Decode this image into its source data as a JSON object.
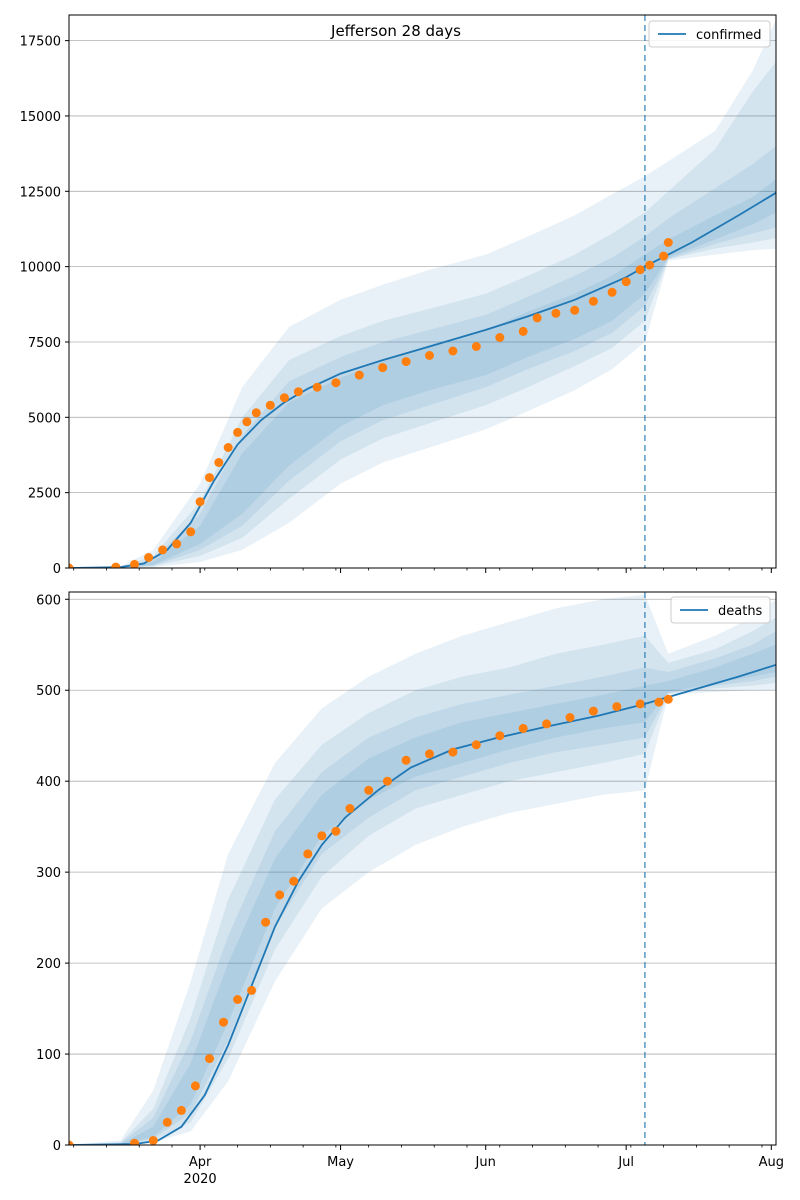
{
  "chart_data": [
    {
      "type": "line",
      "title": "Jefferson 28 days",
      "xlabel": "",
      "ylabel": "",
      "x_ticks": [
        "Apr\n2020",
        "May",
        "Jun",
        "Jul",
        "Aug"
      ],
      "y_ticks": [
        0,
        2500,
        5000,
        7500,
        10000,
        12500,
        15000,
        17500
      ],
      "ylim": [
        0,
        18350
      ],
      "xlim": [
        "2020-03-04",
        "2020-08-02"
      ],
      "forecast_start": "2020-07-05",
      "grid": "horizontal",
      "legend": {
        "position": "top-right",
        "entries": [
          "confirmed"
        ]
      },
      "colors": {
        "model": "#1f77b4",
        "observed": "#ff7f0e",
        "band": "#1f77b4"
      },
      "series": [
        {
          "name": "confirmed",
          "kind": "model-line",
          "x": [
            "2020-03-04",
            "2020-03-15",
            "2020-03-20",
            "2020-03-25",
            "2020-03-30",
            "2020-04-04",
            "2020-04-09",
            "2020-04-14",
            "2020-04-19",
            "2020-04-24",
            "2020-05-01",
            "2020-05-10",
            "2020-05-20",
            "2020-06-01",
            "2020-06-10",
            "2020-06-20",
            "2020-07-01",
            "2020-07-05",
            "2020-07-15",
            "2020-07-25",
            "2020-08-02"
          ],
          "values": [
            0,
            30,
            150,
            600,
            1500,
            2900,
            4100,
            4900,
            5500,
            5950,
            6450,
            6900,
            7350,
            7900,
            8350,
            8900,
            9650,
            10000,
            10800,
            11700,
            12450
          ]
        },
        {
          "name": "",
          "kind": "observed-points",
          "x": [
            "2020-03-04",
            "2020-03-14",
            "2020-03-18",
            "2020-03-21",
            "2020-03-24",
            "2020-03-27",
            "2020-03-30",
            "2020-04-01",
            "2020-04-03",
            "2020-04-05",
            "2020-04-07",
            "2020-04-09",
            "2020-04-11",
            "2020-04-13",
            "2020-04-16",
            "2020-04-19",
            "2020-04-22",
            "2020-04-26",
            "2020-04-30",
            "2020-05-05",
            "2020-05-10",
            "2020-05-15",
            "2020-05-20",
            "2020-05-25",
            "2020-05-30",
            "2020-06-04",
            "2020-06-09",
            "2020-06-12",
            "2020-06-16",
            "2020-06-20",
            "2020-06-24",
            "2020-06-28",
            "2020-07-01",
            "2020-07-04",
            "2020-07-06",
            "2020-07-09",
            "2020-07-10"
          ],
          "values": [
            0,
            30,
            120,
            350,
            600,
            800,
            1200,
            2200,
            3000,
            3500,
            4000,
            4500,
            4850,
            5150,
            5400,
            5650,
            5850,
            6000,
            6150,
            6400,
            6650,
            6850,
            7050,
            7200,
            7350,
            7650,
            7850,
            8300,
            8450,
            8550,
            8850,
            9150,
            9500,
            9900,
            10050,
            10350,
            10800
          ]
        }
      ],
      "bands": [
        {
          "upper": [
            0,
            60,
            600,
            2800,
            6000,
            8000,
            8900,
            9400,
            9900,
            10400,
            11000,
            11700,
            12400,
            13000,
            13500,
            14500,
            16500,
            18200
          ],
          "lower": [
            0,
            0,
            30,
            200,
            600,
            1500,
            2800,
            3500,
            4000,
            4600,
            5200,
            5900,
            6600,
            7500,
            10200,
            10400,
            10550,
            10600
          ]
        },
        {
          "upper": [
            0,
            40,
            400,
            2200,
            5000,
            6900,
            7700,
            8200,
            8600,
            9100,
            9700,
            10400,
            11100,
            11800,
            12500,
            13900,
            15800,
            16800
          ],
          "lower": [
            0,
            0,
            60,
            400,
            1000,
            2300,
            3600,
            4300,
            4800,
            5400,
            6000,
            6700,
            7300,
            8200,
            10250,
            10600,
            10800,
            10950
          ]
        },
        {
          "upper": [
            0,
            30,
            300,
            1800,
            4400,
            6200,
            7000,
            7500,
            7900,
            8400,
            9000,
            9700,
            10300,
            11000,
            11600,
            12600,
            13400,
            14000
          ],
          "lower": [
            0,
            0,
            80,
            600,
            1400,
            2900,
            4200,
            4900,
            5400,
            6000,
            6600,
            7200,
            7800,
            8700,
            10250,
            10750,
            11100,
            11300
          ]
        },
        {
          "upper": [
            0,
            20,
            200,
            1400,
            3800,
            5500,
            6300,
            6900,
            7400,
            7900,
            8500,
            9100,
            9700,
            10400,
            10900,
            11700,
            12300,
            12900
          ],
          "lower": [
            0,
            0,
            100,
            800,
            1800,
            3400,
            4700,
            5400,
            5900,
            6400,
            7000,
            7600,
            8200,
            9100,
            10300,
            10900,
            11400,
            11800
          ]
        }
      ],
      "band_x": [
        "2020-03-04",
        "2020-03-15",
        "2020-03-22",
        "2020-04-01",
        "2020-04-10",
        "2020-04-20",
        "2020-05-01",
        "2020-05-10",
        "2020-05-20",
        "2020-06-01",
        "2020-06-10",
        "2020-06-20",
        "2020-06-28",
        "2020-07-05",
        "2020-07-10",
        "2020-07-20",
        "2020-07-28",
        "2020-08-02"
      ]
    },
    {
      "type": "line",
      "title": "",
      "xlabel": "",
      "ylabel": "",
      "x_ticks": [
        "Apr\n2020",
        "May",
        "Jun",
        "Jul",
        "Aug"
      ],
      "y_ticks": [
        0,
        100,
        200,
        300,
        400,
        500,
        600
      ],
      "ylim": [
        0,
        608
      ],
      "xlim": [
        "2020-03-04",
        "2020-08-02"
      ],
      "forecast_start": "2020-07-05",
      "grid": "horizontal",
      "legend": {
        "position": "top-right",
        "entries": [
          "deaths"
        ]
      },
      "colors": {
        "model": "#1f77b4",
        "observed": "#ff7f0e",
        "band": "#1f77b4"
      },
      "series": [
        {
          "name": "deaths",
          "kind": "model-line",
          "x": [
            "2020-03-04",
            "2020-03-18",
            "2020-03-23",
            "2020-03-28",
            "2020-04-02",
            "2020-04-07",
            "2020-04-12",
            "2020-04-17",
            "2020-04-22",
            "2020-04-27",
            "2020-05-02",
            "2020-05-09",
            "2020-05-16",
            "2020-05-25",
            "2020-06-03",
            "2020-06-14",
            "2020-06-25",
            "2020-07-05",
            "2020-07-15",
            "2020-07-25",
            "2020-08-02"
          ],
          "values": [
            0,
            1,
            5,
            20,
            55,
            110,
            175,
            240,
            290,
            330,
            360,
            390,
            415,
            435,
            447,
            460,
            472,
            485,
            500,
            515,
            528
          ]
        },
        {
          "name": "",
          "kind": "observed-points",
          "x": [
            "2020-03-04",
            "2020-03-18",
            "2020-03-22",
            "2020-03-25",
            "2020-03-28",
            "2020-03-31",
            "2020-04-03",
            "2020-04-06",
            "2020-04-09",
            "2020-04-12",
            "2020-04-15",
            "2020-04-18",
            "2020-04-21",
            "2020-04-24",
            "2020-04-27",
            "2020-04-30",
            "2020-05-03",
            "2020-05-07",
            "2020-05-11",
            "2020-05-15",
            "2020-05-20",
            "2020-05-25",
            "2020-05-30",
            "2020-06-04",
            "2020-06-09",
            "2020-06-14",
            "2020-06-19",
            "2020-06-24",
            "2020-06-29",
            "2020-07-04",
            "2020-07-08",
            "2020-07-10"
          ],
          "values": [
            0,
            2,
            5,
            25,
            38,
            65,
            95,
            135,
            160,
            170,
            245,
            275,
            290,
            320,
            340,
            345,
            370,
            390,
            400,
            423,
            430,
            432,
            440,
            450,
            458,
            463,
            470,
            477,
            482,
            485,
            487,
            490
          ]
        }
      ],
      "bands": [
        {
          "upper": [
            0,
            5,
            60,
            180,
            320,
            420,
            480,
            515,
            540,
            560,
            575,
            590,
            600,
            605,
            540,
            560,
            580,
            600
          ],
          "lower": [
            0,
            0,
            3,
            15,
            70,
            180,
            260,
            300,
            330,
            350,
            365,
            375,
            385,
            390,
            495,
            498,
            500,
            500
          ]
        },
        {
          "upper": [
            0,
            3,
            40,
            140,
            270,
            380,
            440,
            475,
            500,
            515,
            525,
            540,
            550,
            560,
            530,
            545,
            565,
            580
          ],
          "lower": [
            0,
            0,
            5,
            25,
            95,
            215,
            295,
            340,
            370,
            385,
            400,
            410,
            420,
            430,
            496,
            502,
            505,
            508
          ]
        },
        {
          "upper": [
            0,
            2,
            30,
            115,
            230,
            345,
            410,
            448,
            470,
            485,
            495,
            505,
            515,
            525,
            520,
            535,
            550,
            565
          ],
          "lower": [
            0,
            0,
            7,
            35,
            115,
            240,
            320,
            360,
            390,
            405,
            420,
            432,
            440,
            448,
            497,
            505,
            510,
            515
          ]
        },
        {
          "upper": [
            0,
            1,
            20,
            90,
            200,
            315,
            385,
            425,
            448,
            465,
            475,
            485,
            495,
            505,
            510,
            525,
            540,
            550
          ],
          "lower": [
            0,
            0,
            9,
            45,
            135,
            260,
            340,
            380,
            405,
            420,
            435,
            448,
            458,
            465,
            498,
            508,
            515,
            520
          ]
        }
      ],
      "band_x": [
        "2020-03-04",
        "2020-03-15",
        "2020-03-22",
        "2020-03-30",
        "2020-04-07",
        "2020-04-17",
        "2020-04-27",
        "2020-05-07",
        "2020-05-17",
        "2020-05-27",
        "2020-06-06",
        "2020-06-16",
        "2020-06-26",
        "2020-07-05",
        "2020-07-10",
        "2020-07-20",
        "2020-07-28",
        "2020-08-02"
      ]
    }
  ]
}
